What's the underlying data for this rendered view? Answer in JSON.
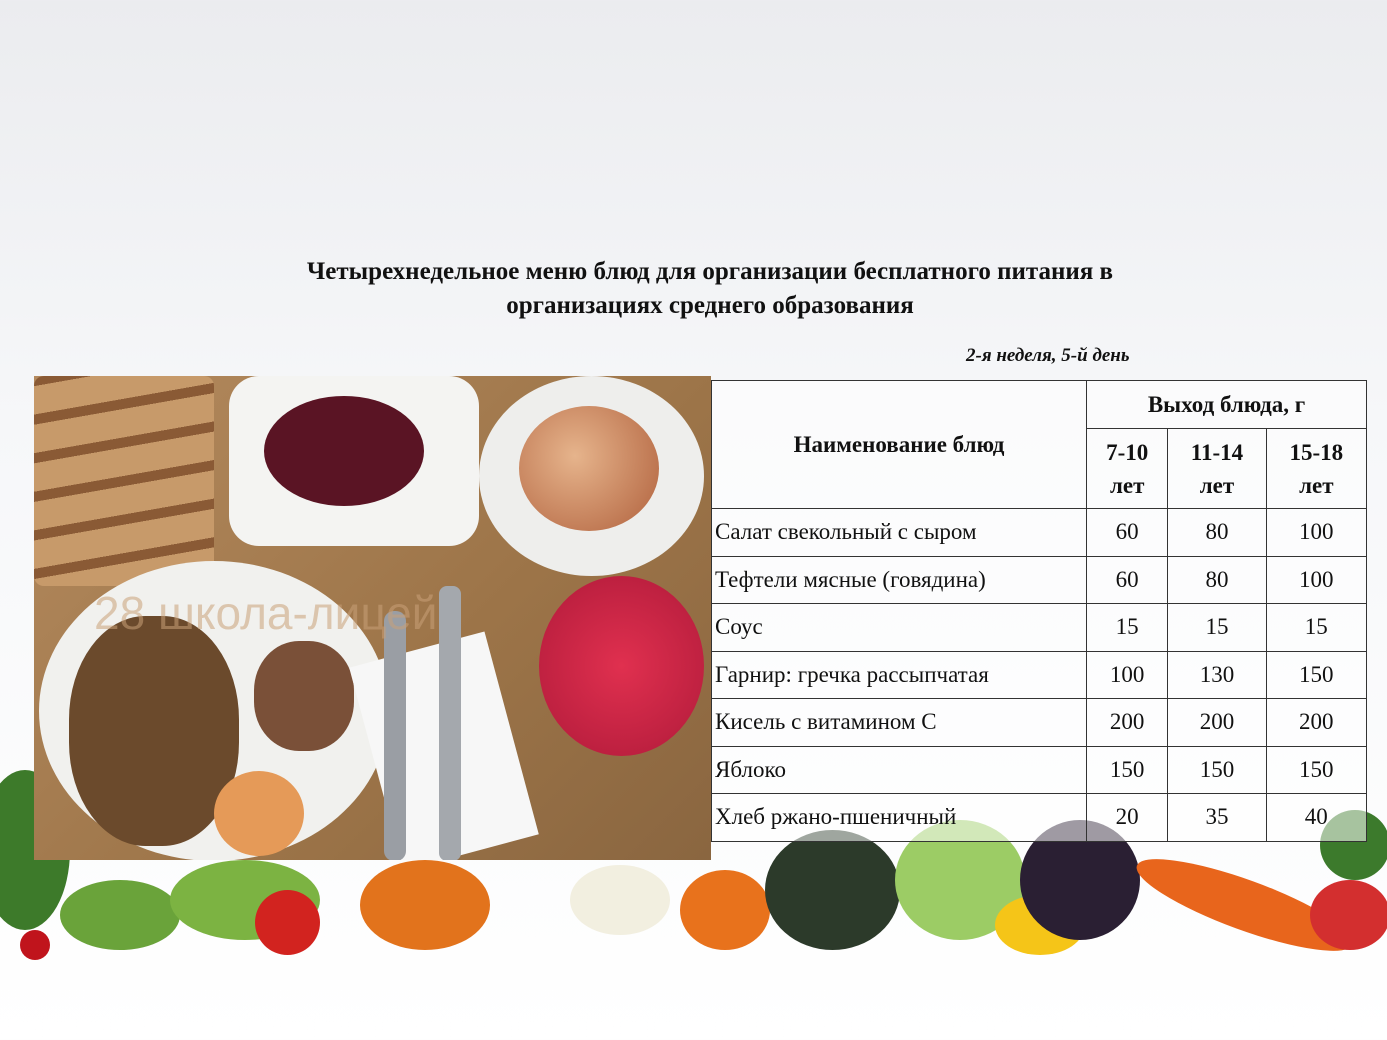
{
  "title_line1": "Четырехнедельное меню блюд для организации бесплатного питания в",
  "title_line2": "организациях среднего образования",
  "subtitle": "2-я неделя, 5-й день",
  "photo": {
    "watermark": "28 школа-лицей"
  },
  "table": {
    "name_header": "Наименование блюд",
    "yield_header": "Выход блюда, г",
    "age_groups": [
      {
        "range": "7-10",
        "unit": "лет"
      },
      {
        "range": "11-14",
        "unit": "лет"
      },
      {
        "range": "15-18",
        "unit": "лет"
      }
    ],
    "rows": [
      {
        "name": "Салат свекольный с сыром",
        "v": [
          "60",
          "80",
          "100"
        ]
      },
      {
        "name": "Тефтели мясные (говядина)",
        "v": [
          "60",
          "80",
          "100"
        ]
      },
      {
        "name": "Соус",
        "v": [
          "15",
          "15",
          "15"
        ]
      },
      {
        "name": "Гарнир: гречка рассыпчатая",
        "v": [
          "100",
          "130",
          "150"
        ]
      },
      {
        "name": "Кисель с витамином С",
        "v": [
          "200",
          "200",
          "200"
        ]
      },
      {
        "name": "Яблоко",
        "v": [
          "150",
          "150",
          "150"
        ]
      },
      {
        "name": "Хлеб ржано-пшеничный",
        "v": [
          "20",
          "35",
          "40"
        ]
      }
    ]
  }
}
